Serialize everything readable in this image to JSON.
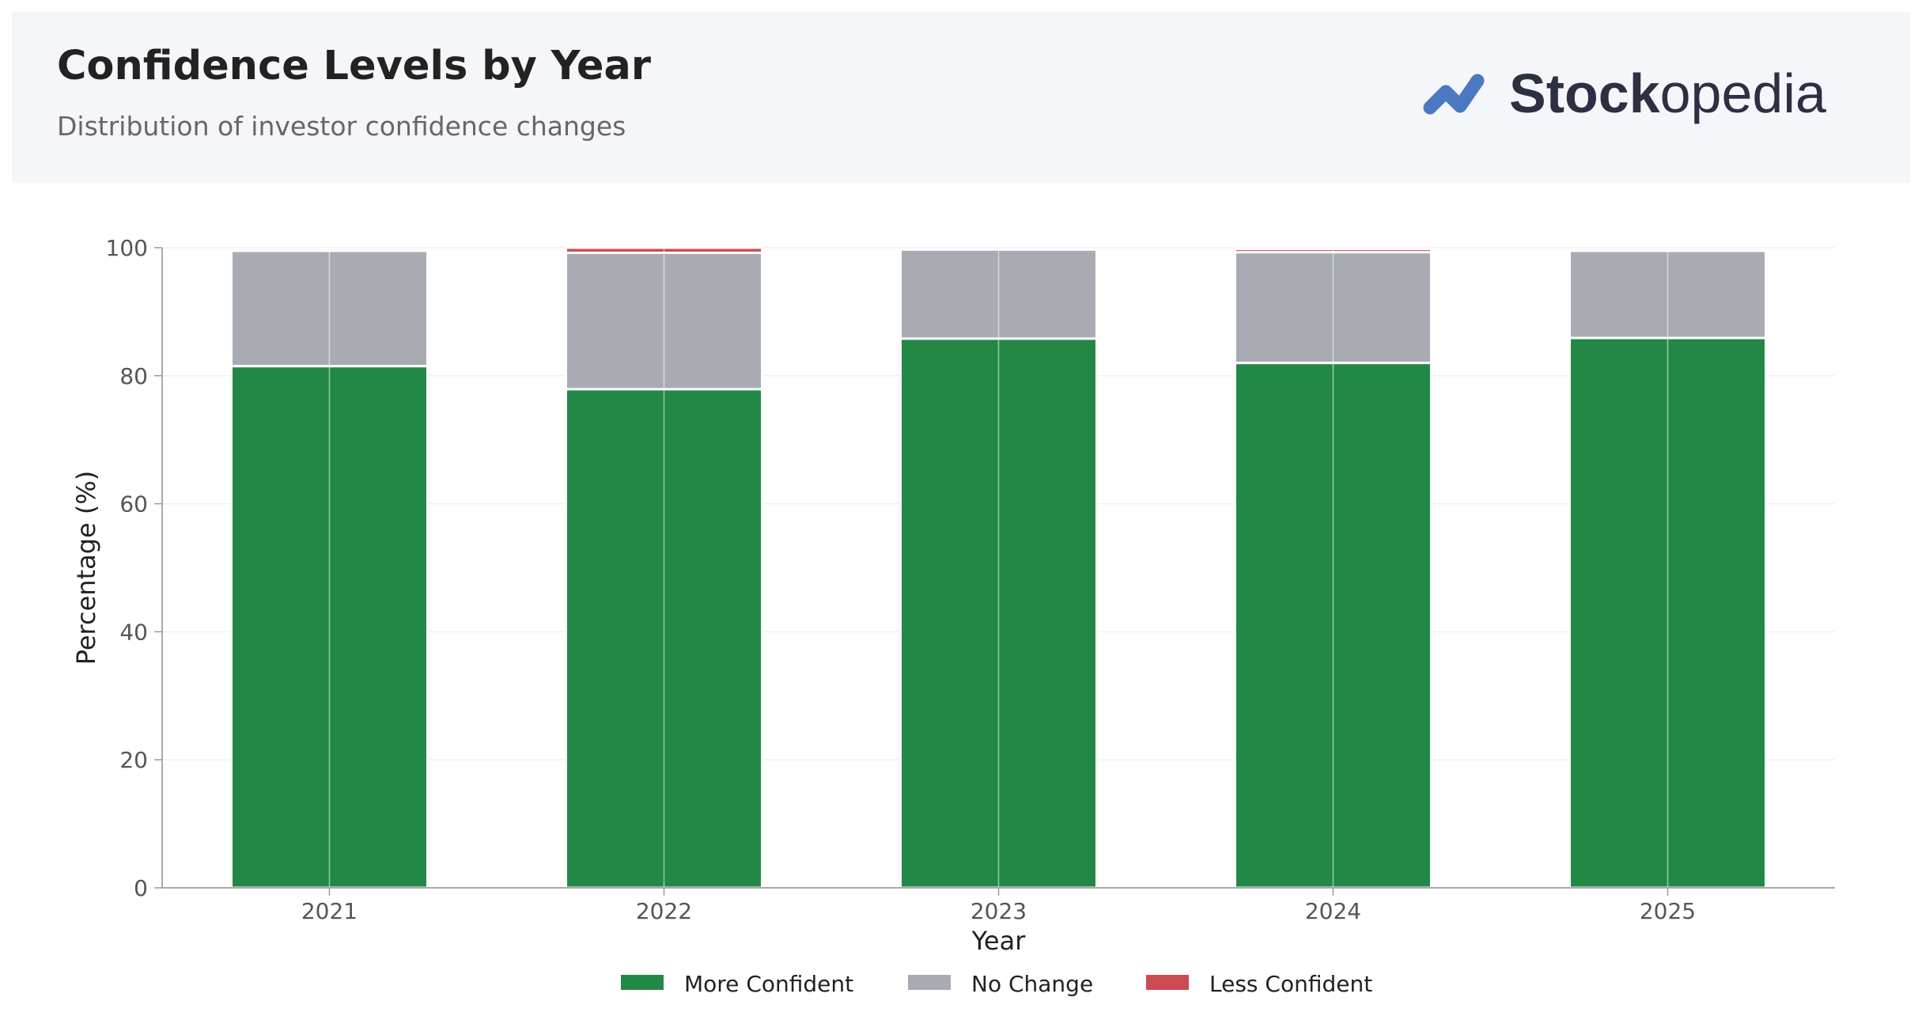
{
  "header": {
    "title": "Confidence Levels by Year",
    "subtitle": "Distribution of investor confidence changes",
    "logo_text_bold": "Stock",
    "logo_text_light": "opedia"
  },
  "colors": {
    "more_confident": "#238845",
    "no_change": "#a9abb3",
    "less_confident": "#cc4b53",
    "logo_mark": "#4b78c0",
    "logo_text": "#2b3142"
  },
  "chart_data": {
    "type": "bar",
    "stacked": true,
    "title": "Confidence Levels by Year",
    "subtitle": "Distribution of investor confidence changes",
    "xlabel": "Year",
    "ylabel": "Percentage (%)",
    "ylim": [
      0,
      100
    ],
    "yticks": [
      0,
      20,
      40,
      60,
      80,
      100
    ],
    "grid": true,
    "legend_position": "bottom-center",
    "categories": [
      "2021",
      "2022",
      "2023",
      "2024",
      "2025"
    ],
    "series": [
      {
        "name": "More Confident",
        "color": "#238845",
        "values": [
          81.5,
          77.9,
          85.8,
          82.0,
          85.9
        ]
      },
      {
        "name": "No Change",
        "color": "#a9abb3",
        "values": [
          18.0,
          21.3,
          13.9,
          17.3,
          13.6
        ]
      },
      {
        "name": "Less Confident",
        "color": "#cc4b53",
        "values": [
          0.0,
          0.8,
          0.0,
          0.5,
          0.0
        ]
      }
    ]
  }
}
